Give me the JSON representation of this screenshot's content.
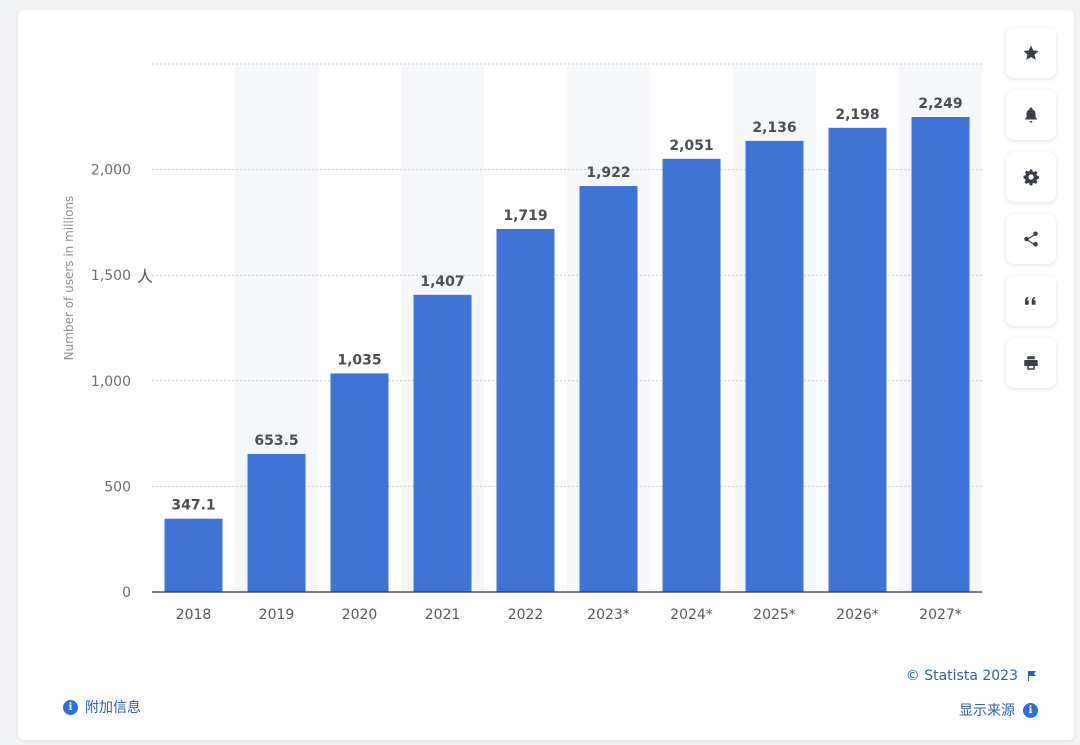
{
  "chart_data": {
    "type": "bar",
    "categories": [
      "2018",
      "2019",
      "2020",
      "2021",
      "2022",
      "2023*",
      "2024*",
      "2025*",
      "2026*",
      "2027*"
    ],
    "values": [
      347.1,
      653.5,
      1035,
      1407,
      1719,
      1922,
      2051,
      2136,
      2198,
      2249
    ],
    "value_labels": [
      "347.1",
      "653.5",
      "1,035",
      "1,407",
      "1,719",
      "1,922",
      "2,051",
      "2,136",
      "2,198",
      "2,249"
    ],
    "ylabel": "Number of users in millions",
    "yticks": [
      0,
      500,
      1000,
      1500,
      2000
    ],
    "ytick_labels": [
      "0",
      "500",
      "1,000",
      "1,500",
      "2,000"
    ],
    "ylim": [
      0,
      2500
    ],
    "grid": true,
    "bar_color": "#3f73d6",
    "alt_band_color": "#f6f7fa"
  },
  "cursor_glyph": "人",
  "sidebar": {
    "icons": [
      "star-icon",
      "bell-icon",
      "gear-icon",
      "share-icon",
      "quote-icon",
      "print-icon"
    ]
  },
  "footer": {
    "additional_info": "附加信息",
    "copyright": "© Statista 2023",
    "show_source": "显示来源"
  }
}
